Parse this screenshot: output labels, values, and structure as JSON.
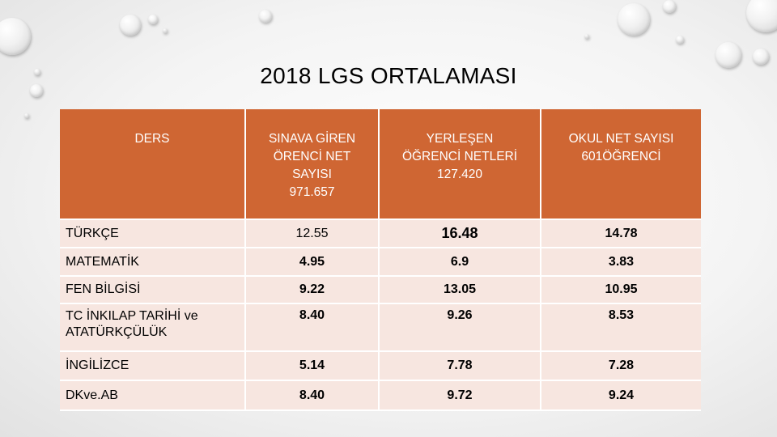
{
  "title": "2018 LGS ORTALAMASI",
  "headers": {
    "ders": "DERS",
    "col1": [
      "SINAVA GİREN",
      "ÖRENCİ NET",
      "SAYISI",
      "971.657"
    ],
    "col2": [
      "YERLEŞEN",
      "ÖĞRENCİ NETLERİ",
      "127.420"
    ],
    "col3": [
      "OKUL NET SAYISI",
      "601ÖĞRENCİ"
    ]
  },
  "rows": [
    {
      "ders": "TÜRKÇE",
      "v1": "12.55",
      "v2": "16.48",
      "v3": "14.78"
    },
    {
      "ders": "MATEMATİK",
      "v1": "4.95",
      "v2": "6.9",
      "v3": "3.83"
    },
    {
      "ders": "FEN BİLGİSİ",
      "v1": "9.22",
      "v2": "13.05",
      "v3": "10.95"
    },
    {
      "ders": "TC İNKILAP TARİHİ ve ATATÜRKÇÜLÜK",
      "v1": "8.40",
      "v2": "9.26",
      "v3": "8.53"
    },
    {
      "ders": "İNGİLİZCE",
      "v1": "5.14",
      "v2": "7.78",
      "v3": "7.28"
    },
    {
      "ders": "DKve.AB",
      "v1": "8.40",
      "v2": "9.72",
      "v3": "9.24"
    }
  ]
}
